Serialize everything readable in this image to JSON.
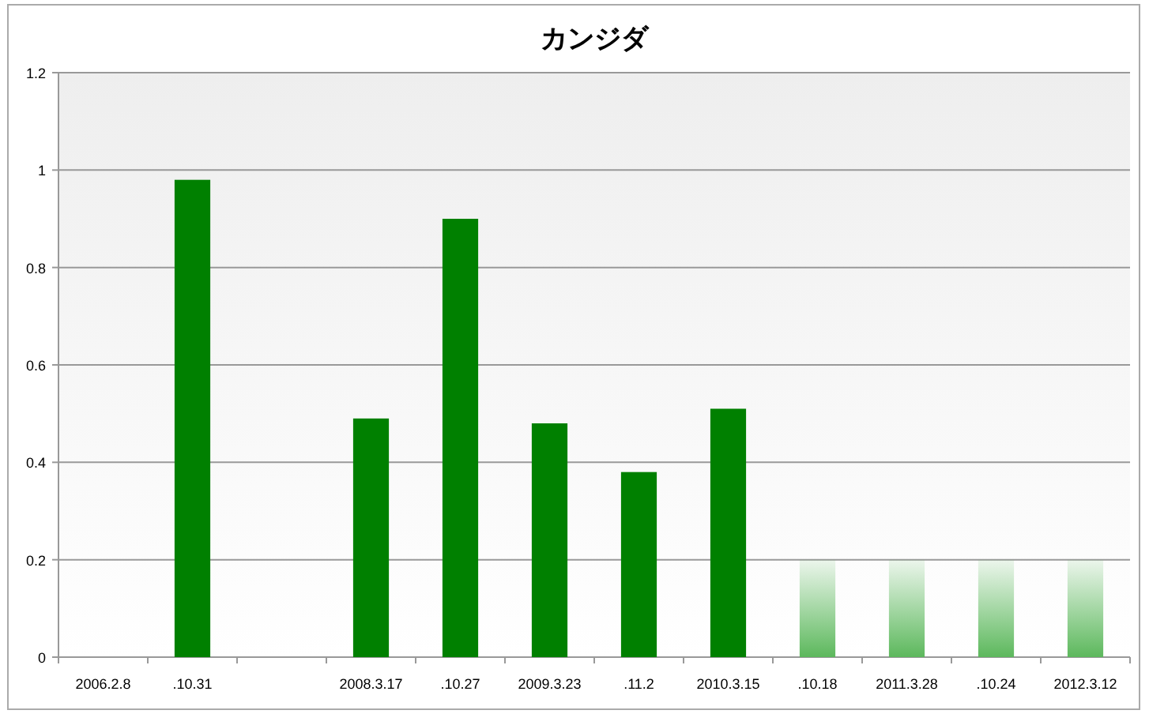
{
  "chart_data": {
    "type": "bar",
    "title": "カンジダ",
    "categories": [
      "2006.2.8",
      ".10.31",
      null,
      "2008.3.17",
      ".10.27",
      "2009.3.23",
      ".11.2",
      "2010.3.15",
      ".10.18",
      "2011.3.28",
      ".10.24",
      "2012.3.12"
    ],
    "values": [
      null,
      0.98,
      null,
      0.49,
      0.9,
      0.48,
      0.38,
      0.51,
      0.2,
      0.2,
      0.2,
      0.2
    ],
    "colors": [
      "#008000",
      "#008000",
      "#008000",
      "#008000",
      "#008000",
      "#008000",
      "#008000",
      "#008000",
      "#5cb85c",
      "#5cb85c",
      "#5cb85c",
      "#5cb85c"
    ],
    "ylim": [
      0,
      1.2
    ],
    "yticks": [
      0,
      0.2,
      0.4,
      0.6,
      0.8,
      1,
      1.2
    ],
    "grid": "y"
  }
}
